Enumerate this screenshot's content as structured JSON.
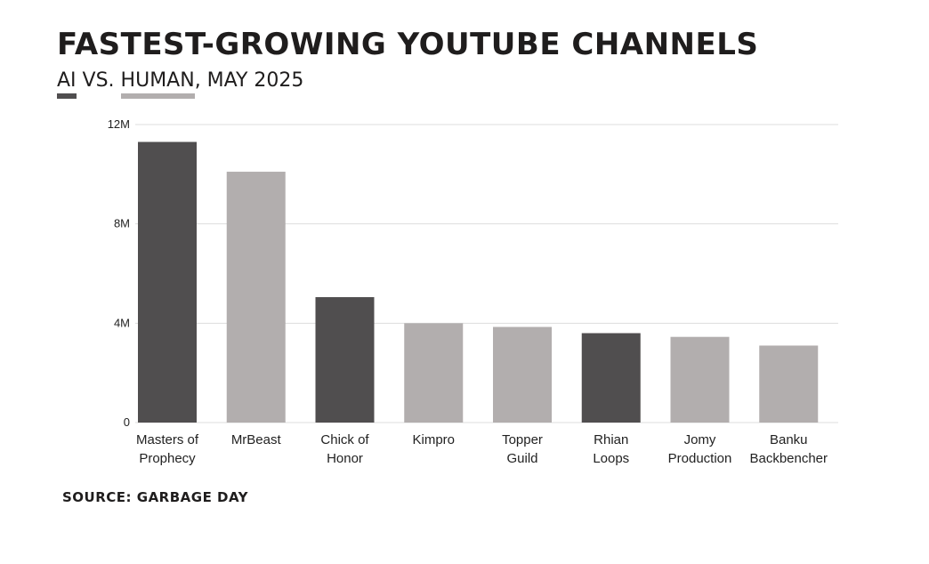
{
  "title": "FASTEST-GROWING YOUTUBE CHANNELS",
  "subtitle": {
    "ai": "AI",
    "vs": " VS. ",
    "human": "HUMAN",
    "rest": ", MAY 2025"
  },
  "source": "SOURCE: GARBAGE DAY",
  "colors": {
    "ai": "#504e4f",
    "human": "#b2aeae",
    "grid": "#dddddd"
  },
  "chart_data": {
    "type": "bar",
    "title": "FASTEST-GROWING YOUTUBE CHANNELS",
    "subtitle": "AI VS. HUMAN, MAY 2025",
    "categories": [
      [
        "Masters of",
        "Prophecy"
      ],
      [
        "MrBeast"
      ],
      [
        "Chick of",
        "Honor"
      ],
      [
        "Kimpro"
      ],
      [
        "Topper",
        "Guild"
      ],
      [
        "Rhian",
        "Loops"
      ],
      [
        "Jomy",
        "Production"
      ],
      [
        "Banku",
        "Backbencher"
      ]
    ],
    "values": [
      11300000,
      10100000,
      5050000,
      4000000,
      3850000,
      3600000,
      3450000,
      3100000
    ],
    "group": [
      "AI",
      "Human",
      "AI",
      "Human",
      "Human",
      "AI",
      "Human",
      "Human"
    ],
    "legend": [
      {
        "name": "AI",
        "color": "#504e4f"
      },
      {
        "name": "HUMAN",
        "color": "#b2aeae"
      }
    ],
    "yticks": [
      {
        "value": 0,
        "label": "0"
      },
      {
        "value": 4000000,
        "label": "4M"
      },
      {
        "value": 8000000,
        "label": "8M"
      },
      {
        "value": 12000000,
        "label": "12M"
      }
    ],
    "ylim": [
      0,
      12000000
    ],
    "grid": true,
    "xlabel": "",
    "ylabel": ""
  }
}
